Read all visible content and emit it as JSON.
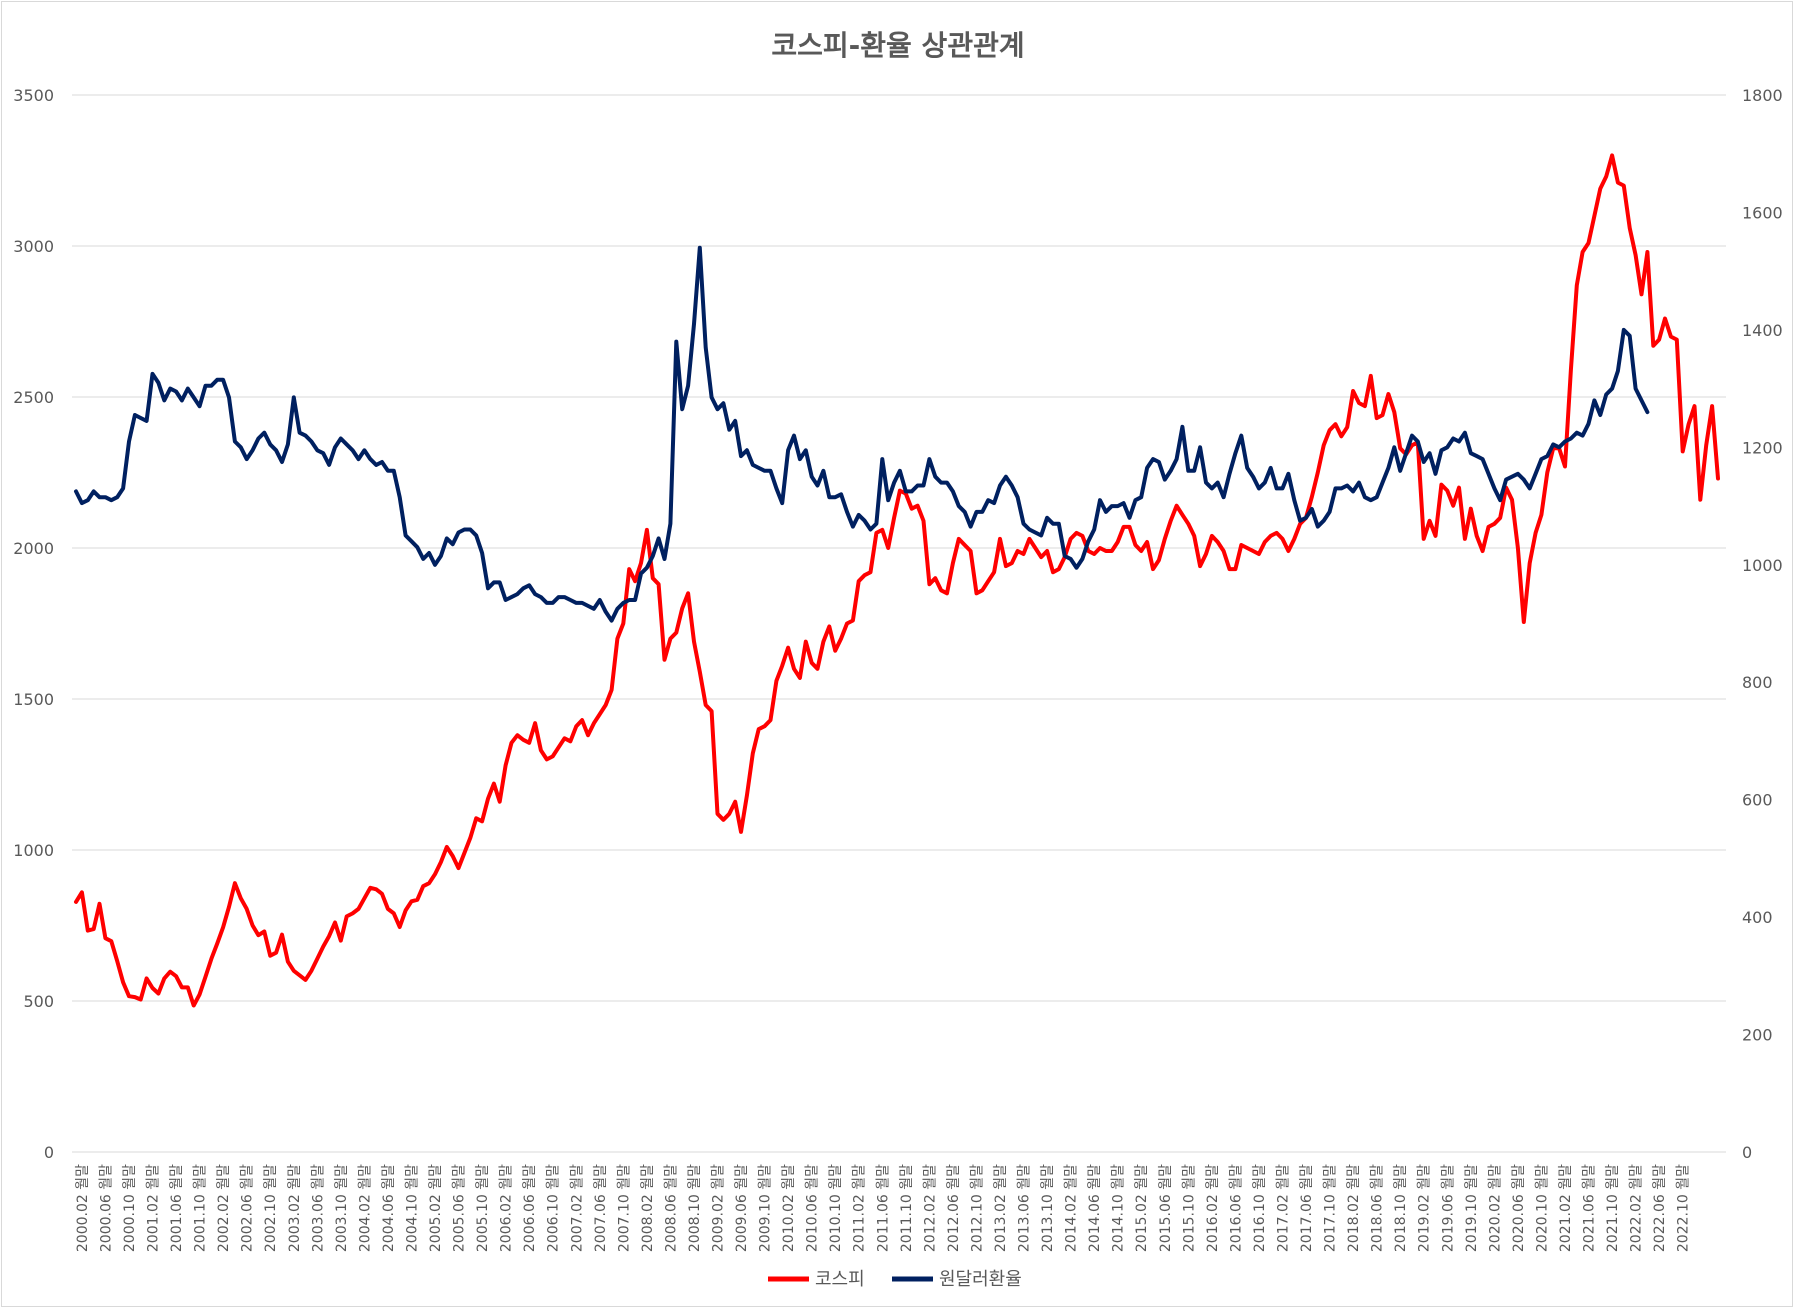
{
  "chart_data": {
    "type": "line",
    "title": "코스피-환율 상관관계",
    "y_left": {
      "min": 0,
      "max": 3500,
      "ticks": [
        0,
        500,
        1000,
        1500,
        2000,
        2500,
        3000,
        3500
      ]
    },
    "y_right": {
      "min": 0,
      "max": 1800,
      "ticks": [
        0,
        200,
        400,
        600,
        800,
        1000,
        1200,
        1400,
        1600,
        1800
      ]
    },
    "x_start": "2000.01",
    "x_end": "2022.12",
    "x_tick_labels": [
      "2000.02",
      "2000.06",
      "2000.10",
      "2001.02",
      "2001.06",
      "2001.10",
      "2002.02",
      "2002.06",
      "2002.10",
      "2003.02",
      "2003.06",
      "2003.10",
      "2004.02",
      "2004.06",
      "2004.10",
      "2005.02",
      "2005.06",
      "2005.10",
      "2006.02",
      "2006.06",
      "2006.10",
      "2007.02",
      "2007.06",
      "2007.10",
      "2008.02",
      "2008.06",
      "2008.10",
      "2009.02",
      "2009.06",
      "2009.10",
      "2010.02",
      "2010.06",
      "2010.10",
      "2011.02",
      "2011.06",
      "2011.10",
      "2012.02",
      "2012.06",
      "2012.10",
      "2013.02",
      "2013.06",
      "2013.10",
      "2014.02",
      "2014.06",
      "2014.10",
      "2015.02",
      "2015.06",
      "2015.10",
      "2016.02",
      "2016.06",
      "2016.10",
      "2017.02",
      "2017.06",
      "2017.10",
      "2018.02",
      "2018.06",
      "2018.10",
      "2019.02",
      "2019.06",
      "2019.10",
      "2020.02",
      "2020.06",
      "2020.10",
      "2021.02",
      "2021.06",
      "2021.10",
      "2022.02",
      "2022.06",
      "2022.10"
    ],
    "x_tick_suffix": "월말",
    "gridlines": true,
    "legend_position": "bottom",
    "series": [
      {
        "name": "코스피",
        "axis": "left",
        "color": "#ff0000",
        "values": [
          828,
          860,
          733,
          738,
          822,
          708,
          698,
          632,
          562,
          516,
          513,
          505,
          575,
          543,
          525,
          575,
          597,
          582,
          545,
          545,
          485,
          522,
          580,
          640,
          690,
          744,
          812,
          890,
          840,
          805,
          750,
          718,
          730,
          650,
          660,
          720,
          630,
          600,
          585,
          570,
          600,
          640,
          680,
          715,
          760,
          700,
          780,
          790,
          805,
          840,
          875,
          870,
          855,
          805,
          790,
          745,
          800,
          830,
          835,
          880,
          890,
          920,
          960,
          1010,
          980,
          940,
          990,
          1040,
          1105,
          1095,
          1170,
          1220,
          1160,
          1280,
          1355,
          1380,
          1365,
          1355,
          1420,
          1330,
          1300,
          1310,
          1340,
          1370,
          1360,
          1410,
          1430,
          1380,
          1420,
          1450,
          1480,
          1530,
          1700,
          1750,
          1930,
          1890,
          1950,
          2060,
          1900,
          1880,
          1630,
          1700,
          1720,
          1800,
          1850,
          1690,
          1590,
          1480,
          1460,
          1120,
          1100,
          1120,
          1160,
          1060,
          1180,
          1320,
          1400,
          1410,
          1430,
          1560,
          1610,
          1670,
          1600,
          1570,
          1690,
          1620,
          1600,
          1690,
          1740,
          1660,
          1700,
          1750,
          1760,
          1890,
          1910,
          1920,
          2050,
          2060,
          2000,
          2100,
          2190,
          2180,
          2130,
          2140,
          2090,
          1880,
          1900,
          1860,
          1850,
          1950,
          2030,
          2010,
          1990,
          1850,
          1860,
          1890,
          1920,
          2030,
          1940,
          1950,
          1990,
          1980,
          2030,
          2000,
          1970,
          1990,
          1920,
          1930,
          1970,
          2030,
          2050,
          2040,
          1990,
          1980,
          2000,
          1990,
          1990,
          2020,
          2070,
          2070,
          2010,
          1990,
          2020,
          1930,
          1960,
          2030,
          2090,
          2140,
          2110,
          2080,
          2040,
          1940,
          1980,
          2040,
          2020,
          1990,
          1930,
          1930,
          2010,
          2000,
          1990,
          1980,
          2020,
          2040,
          2050,
          2030,
          1990,
          2030,
          2080,
          2100,
          2170,
          2250,
          2340,
          2390,
          2410,
          2370,
          2400,
          2520,
          2480,
          2470,
          2570,
          2430,
          2440,
          2510,
          2450,
          2330,
          2310,
          2340,
          2350,
          2030,
          2090,
          2040,
          2210,
          2190,
          2140,
          2200,
          2030,
          2130,
          2040,
          1990,
          2070,
          2080,
          2100,
          2200,
          2160,
          2000,
          1755,
          1950,
          2050,
          2110,
          2250,
          2330,
          2330,
          2270,
          2590,
          2870,
          2980,
          3010,
          3100,
          3190,
          3230,
          3300,
          3210,
          3200,
          3060,
          2970,
          2840,
          2980,
          2670,
          2690,
          2760,
          2700,
          2690,
          2320,
          2410,
          2470,
          2160,
          2340,
          2470,
          2230
        ]
      },
      {
        "name": "원달러환율",
        "axis": "right",
        "color": "#002060",
        "values": [
          1125,
          1105,
          1110,
          1125,
          1115,
          1115,
          1110,
          1115,
          1130,
          1210,
          1255,
          1250,
          1245,
          1325,
          1310,
          1280,
          1300,
          1295,
          1280,
          1300,
          1285,
          1270,
          1305,
          1305,
          1315,
          1315,
          1285,
          1210,
          1200,
          1180,
          1195,
          1215,
          1225,
          1205,
          1195,
          1175,
          1205,
          1285,
          1225,
          1220,
          1210,
          1195,
          1190,
          1170,
          1200,
          1215,
          1205,
          1195,
          1180,
          1195,
          1180,
          1170,
          1175,
          1160,
          1160,
          1115,
          1050,
          1040,
          1030,
          1010,
          1020,
          1000,
          1015,
          1045,
          1035,
          1055,
          1060,
          1060,
          1050,
          1020,
          960,
          970,
          970,
          940,
          945,
          950,
          960,
          965,
          950,
          945,
          935,
          935,
          945,
          945,
          940,
          935,
          935,
          930,
          925,
          940,
          920,
          905,
          925,
          935,
          940,
          940,
          985,
          995,
          1015,
          1045,
          1010,
          1070,
          1380,
          1265,
          1305,
          1410,
          1540,
          1370,
          1285,
          1265,
          1275,
          1230,
          1245,
          1185,
          1195,
          1170,
          1165,
          1160,
          1160,
          1130,
          1105,
          1195,
          1220,
          1180,
          1195,
          1150,
          1135,
          1160,
          1115,
          1115,
          1120,
          1090,
          1065,
          1085,
          1075,
          1060,
          1070,
          1180,
          1110,
          1140,
          1160,
          1125,
          1125,
          1135,
          1135,
          1180,
          1150,
          1140,
          1140,
          1125,
          1100,
          1090,
          1065,
          1090,
          1090,
          1110,
          1105,
          1135,
          1150,
          1135,
          1115,
          1070,
          1060,
          1055,
          1050,
          1080,
          1070,
          1070,
          1015,
          1010,
          995,
          1010,
          1040,
          1060,
          1110,
          1090,
          1100,
          1100,
          1105,
          1080,
          1110,
          1115,
          1165,
          1180,
          1175,
          1145,
          1160,
          1180,
          1235,
          1160,
          1160,
          1200,
          1140,
          1130,
          1140,
          1115,
          1155,
          1190,
          1220,
          1165,
          1150,
          1130,
          1140,
          1165,
          1130,
          1130,
          1155,
          1110,
          1075,
          1080,
          1095,
          1065,
          1075,
          1090,
          1130,
          1130,
          1135,
          1125,
          1140,
          1115,
          1110,
          1115,
          1140,
          1165,
          1200,
          1160,
          1190,
          1220,
          1210,
          1175,
          1190,
          1155,
          1195,
          1200,
          1215,
          1210,
          1225,
          1190,
          1185,
          1180,
          1155,
          1130,
          1110,
          1145,
          1150,
          1155,
          1145,
          1130,
          1155,
          1180,
          1185,
          1205,
          1200,
          1210,
          1215,
          1225,
          1220,
          1240,
          1280,
          1255,
          1290,
          1300,
          1330,
          1400,
          1390,
          1300,
          1280,
          1260
        ]
      }
    ]
  }
}
